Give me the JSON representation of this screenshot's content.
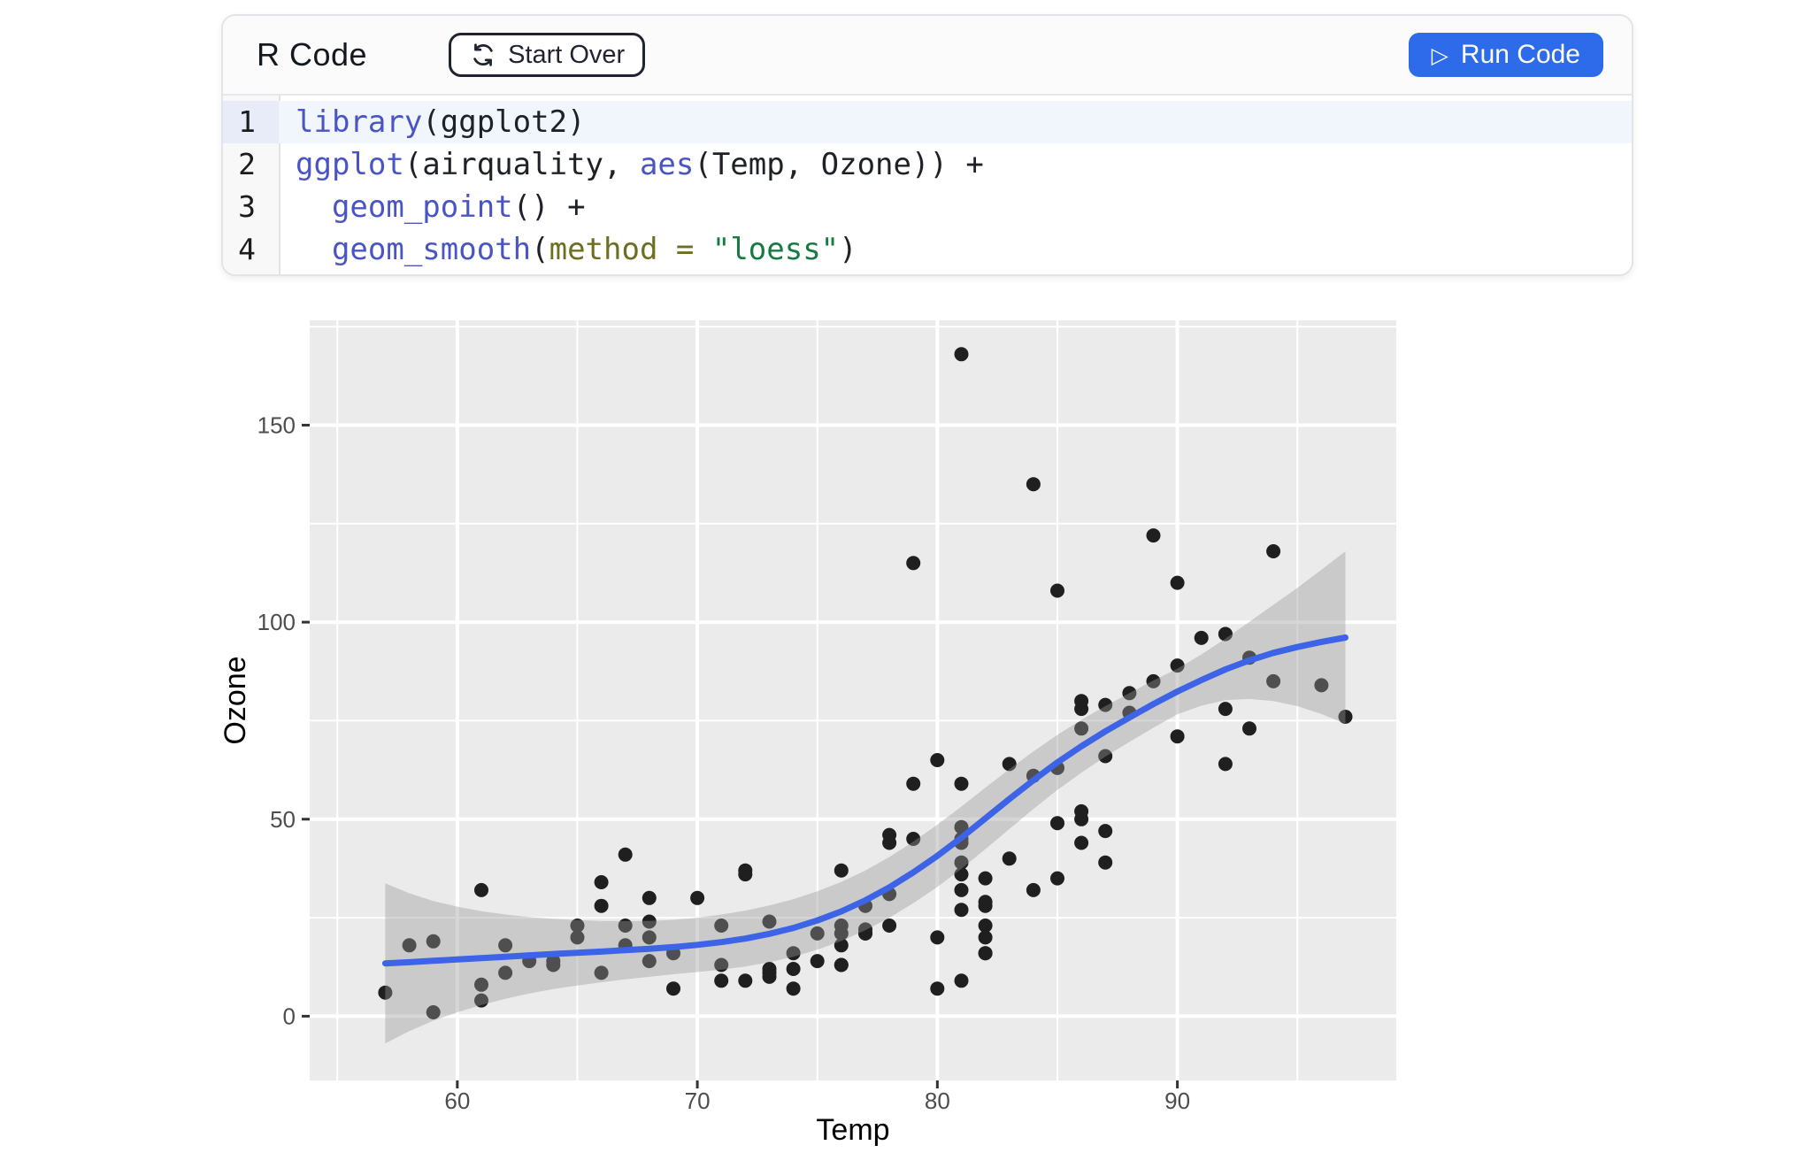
{
  "header": {
    "title": "R Code",
    "start_over_label": "Start Over",
    "run_code_label": "Run Code",
    "run_icon": "▷"
  },
  "editor": {
    "lines": [
      {
        "num": "1",
        "active": true,
        "tokens": [
          {
            "c": "fn",
            "t": "library"
          },
          {
            "c": "pl",
            "t": "(ggplot2)"
          }
        ]
      },
      {
        "num": "2",
        "active": false,
        "tokens": [
          {
            "c": "fn",
            "t": "ggplot"
          },
          {
            "c": "pl",
            "t": "(airquality, "
          },
          {
            "c": "fn",
            "t": "aes"
          },
          {
            "c": "pl",
            "t": "(Temp, Ozone)) +"
          }
        ]
      },
      {
        "num": "3",
        "active": false,
        "tokens": [
          {
            "c": "pl",
            "t": "  "
          },
          {
            "c": "fn",
            "t": "geom_point"
          },
          {
            "c": "pl",
            "t": "() +"
          }
        ]
      },
      {
        "num": "4",
        "active": false,
        "tokens": [
          {
            "c": "pl",
            "t": "  "
          },
          {
            "c": "fn",
            "t": "geom_smooth"
          },
          {
            "c": "pl",
            "t": "("
          },
          {
            "c": "kw",
            "t": "method = "
          },
          {
            "c": "st",
            "t": "\"loess\""
          },
          {
            "c": "pl",
            "t": ")"
          }
        ]
      }
    ]
  },
  "colors": {
    "accent_blue": "#2d6bea",
    "border_dark": "#1f2430",
    "header_bg": "#fbfbfc",
    "card_border": "#e4e4e8",
    "gutter_bg": "#f8f8f8",
    "active_line_bg": "#f1f5fc",
    "active_gutter_bg": "#e7ecf8",
    "token_fn": "#4a55c4",
    "token_kw": "#6c6e20",
    "token_st": "#187a43",
    "token_pl": "#1e2227"
  },
  "chart_data": {
    "type": "scatter",
    "title": "",
    "xlabel": "Temp",
    "ylabel": "Ozone",
    "x_ticks": [
      60,
      70,
      80,
      90
    ],
    "y_ticks": [
      0,
      50,
      100,
      150
    ],
    "x_minor": [
      55,
      65,
      75,
      85,
      95
    ],
    "y_minor": [
      25,
      75,
      125,
      175
    ],
    "xlim": [
      53.85,
      99.12
    ],
    "ylim": [
      -16.3,
      176.6
    ],
    "grid": true,
    "legend": "none",
    "points": {
      "temp": [
        67,
        72,
        74,
        62,
        66,
        65,
        59,
        61,
        74,
        69,
        66,
        68,
        58,
        64,
        66,
        57,
        68,
        62,
        59,
        73,
        61,
        61,
        67,
        81,
        79,
        76,
        82,
        90,
        87,
        82,
        77,
        72,
        65,
        73,
        76,
        84,
        85,
        81,
        92,
        83,
        88,
        92,
        92,
        89,
        73,
        81,
        80,
        81,
        82,
        84,
        87,
        85,
        74,
        86,
        85,
        82,
        86,
        88,
        86,
        83,
        81,
        81,
        81,
        82,
        86,
        85,
        87,
        89,
        90,
        90,
        86,
        82,
        80,
        77,
        79,
        76,
        78,
        78,
        77,
        72,
        79,
        81,
        86,
        97,
        94,
        96,
        94,
        91,
        92,
        93,
        93,
        87,
        84,
        80,
        78,
        75,
        73,
        81,
        76,
        77,
        71,
        71,
        78,
        67,
        76,
        68,
        82,
        64,
        71,
        81,
        69,
        63,
        70,
        75,
        76,
        68
      ],
      "ozone": [
        41,
        36,
        12,
        18,
        28,
        23,
        19,
        8,
        7,
        16,
        11,
        14,
        18,
        14,
        34,
        6,
        30,
        11,
        1,
        11,
        4,
        32,
        23,
        45,
        115,
        37,
        29,
        71,
        39,
        23,
        21,
        37,
        20,
        12,
        13,
        135,
        49,
        32,
        64,
        40,
        77,
        97,
        97,
        85,
        10,
        27,
        7,
        48,
        35,
        61,
        79,
        63,
        16,
        80,
        108,
        20,
        52,
        82,
        50,
        64,
        59,
        39,
        9,
        16,
        78,
        35,
        66,
        122,
        89,
        110,
        44,
        28,
        65,
        22,
        59,
        23,
        31,
        44,
        21,
        9,
        45,
        168,
        73,
        76,
        118,
        84,
        85,
        96,
        78,
        73,
        91,
        47,
        32,
        20,
        23,
        21,
        24,
        44,
        21,
        28,
        9,
        13,
        46,
        18,
        13,
        24,
        16,
        13,
        23,
        36,
        7,
        14,
        30,
        14,
        18,
        20
      ]
    },
    "loess": {
      "temp": [
        57,
        58,
        59,
        60,
        61,
        62,
        63,
        64,
        65,
        66,
        67,
        68,
        69,
        70,
        71,
        72,
        73,
        74,
        75,
        76,
        77,
        78,
        79,
        80,
        81,
        82,
        83,
        84,
        85,
        86,
        87,
        88,
        89,
        90,
        91,
        92,
        93,
        94,
        95,
        96,
        97
      ],
      "fit": [
        13.4,
        13.7,
        14.05,
        14.4,
        14.75,
        15.1,
        15.45,
        15.8,
        16.1,
        16.4,
        16.75,
        17.1,
        17.55,
        18.1,
        18.8,
        19.7,
        20.9,
        22.4,
        24.3,
        26.6,
        29.4,
        32.7,
        36.5,
        40.7,
        45.3,
        50.2,
        55.1,
        59.9,
        64.4,
        68.5,
        72.3,
        75.8,
        79.2,
        82.4,
        85.3,
        88.0,
        90.3,
        92.2,
        93.7,
        95.0,
        96.1
      ],
      "ci": [
        20.3,
        17.5,
        15.2,
        13.4,
        11.9,
        10.7,
        9.7,
        8.9,
        8.3,
        7.8,
        7.4,
        7.1,
        6.9,
        6.9,
        7.0,
        7.1,
        7.2,
        7.3,
        7.4,
        7.5,
        7.6,
        7.7,
        7.8,
        7.9,
        7.9,
        7.8,
        7.6,
        7.3,
        7.0,
        6.7,
        6.4,
        6.2,
        6.0,
        5.8,
        6.5,
        7.8,
        9.8,
        12.2,
        15.0,
        18.3,
        21.9
      ]
    },
    "style": {
      "panel_bg": "#ebebeb",
      "grid_color": "#ffffff",
      "point_color": "#1f1f1f",
      "line_color": "#3d63e6",
      "ribbon_color": "#999999",
      "ribbon_alpha": 0.4,
      "tick_color": "#333333",
      "tick_label_color": "#4d4d4d",
      "axis_title_color": "#000000"
    }
  }
}
